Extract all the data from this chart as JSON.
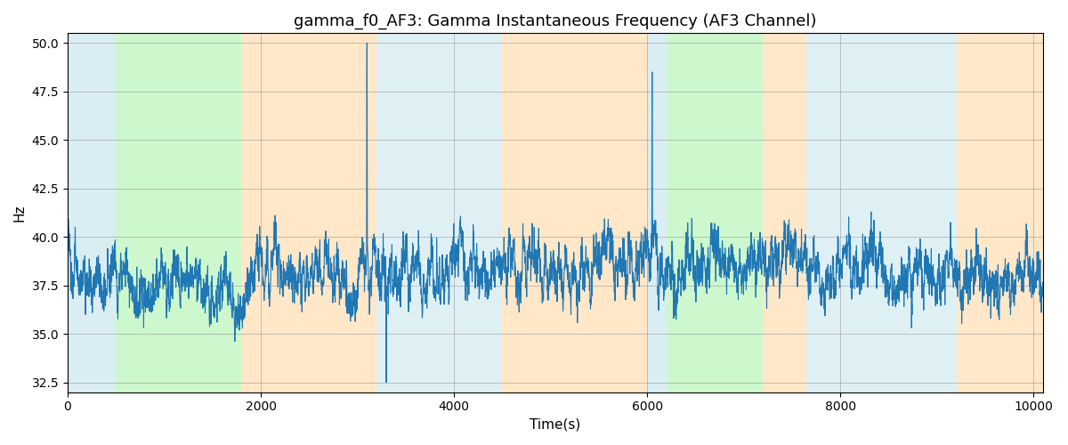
{
  "title": "gamma_f0_AF3: Gamma Instantaneous Frequency (AF3 Channel)",
  "xlabel": "Time(s)",
  "ylabel": "Hz",
  "xlim": [
    0,
    10100
  ],
  "ylim": [
    32.0,
    50.5
  ],
  "yticks": [
    32.5,
    35.0,
    37.5,
    40.0,
    42.5,
    45.0,
    47.5,
    50.0
  ],
  "xticks": [
    0,
    2000,
    4000,
    6000,
    8000,
    10000
  ],
  "line_color": "#1f77b4",
  "line_width": 0.8,
  "seed": 42,
  "n_points": 5000,
  "background_color": "#ffffff",
  "colored_bands": [
    {
      "xmin": 0,
      "xmax": 500,
      "color": "#add8e6",
      "alpha": 0.45
    },
    {
      "xmin": 500,
      "xmax": 1800,
      "color": "#90ee90",
      "alpha": 0.45
    },
    {
      "xmin": 1800,
      "xmax": 3200,
      "color": "#ffd59b",
      "alpha": 0.55
    },
    {
      "xmin": 3200,
      "xmax": 4500,
      "color": "#add8e6",
      "alpha": 0.38
    },
    {
      "xmin": 4500,
      "xmax": 6000,
      "color": "#ffd59b",
      "alpha": 0.55
    },
    {
      "xmin": 6000,
      "xmax": 6200,
      "color": "#add8e6",
      "alpha": 0.45
    },
    {
      "xmin": 6200,
      "xmax": 7200,
      "color": "#90ee90",
      "alpha": 0.45
    },
    {
      "xmin": 7200,
      "xmax": 7650,
      "color": "#ffd59b",
      "alpha": 0.55
    },
    {
      "xmin": 7650,
      "xmax": 9200,
      "color": "#add8e6",
      "alpha": 0.38
    },
    {
      "xmin": 9200,
      "xmax": 10100,
      "color": "#ffd59b",
      "alpha": 0.55
    }
  ],
  "title_fontsize": 13,
  "label_fontsize": 11
}
